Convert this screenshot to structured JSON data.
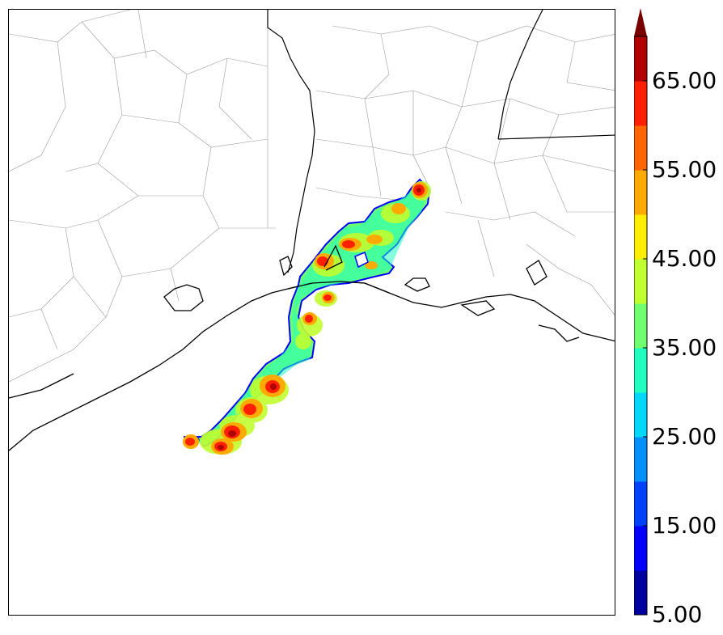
{
  "colorbar": {
    "levels": [
      5,
      10,
      15,
      20,
      25,
      30,
      35,
      40,
      45,
      50,
      55,
      60,
      65,
      70
    ],
    "colors": [
      "#00009f",
      "#0000ff",
      "#0040ff",
      "#0090ff",
      "#00d8ff",
      "#20ffc0",
      "#70ff70",
      "#c0ff30",
      "#ffee00",
      "#ffaa00",
      "#ff6600",
      "#ff2000",
      "#b00000"
    ],
    "extend_color": "#7a0000",
    "tick_labels": [
      "5.00",
      "15.00",
      "25.00",
      "35.00",
      "45.00",
      "55.00",
      "65.00"
    ]
  },
  "map": {
    "coast_color": "#000000",
    "county_color": "#9a9a9a",
    "field_outline_color": "#0000ff"
  }
}
